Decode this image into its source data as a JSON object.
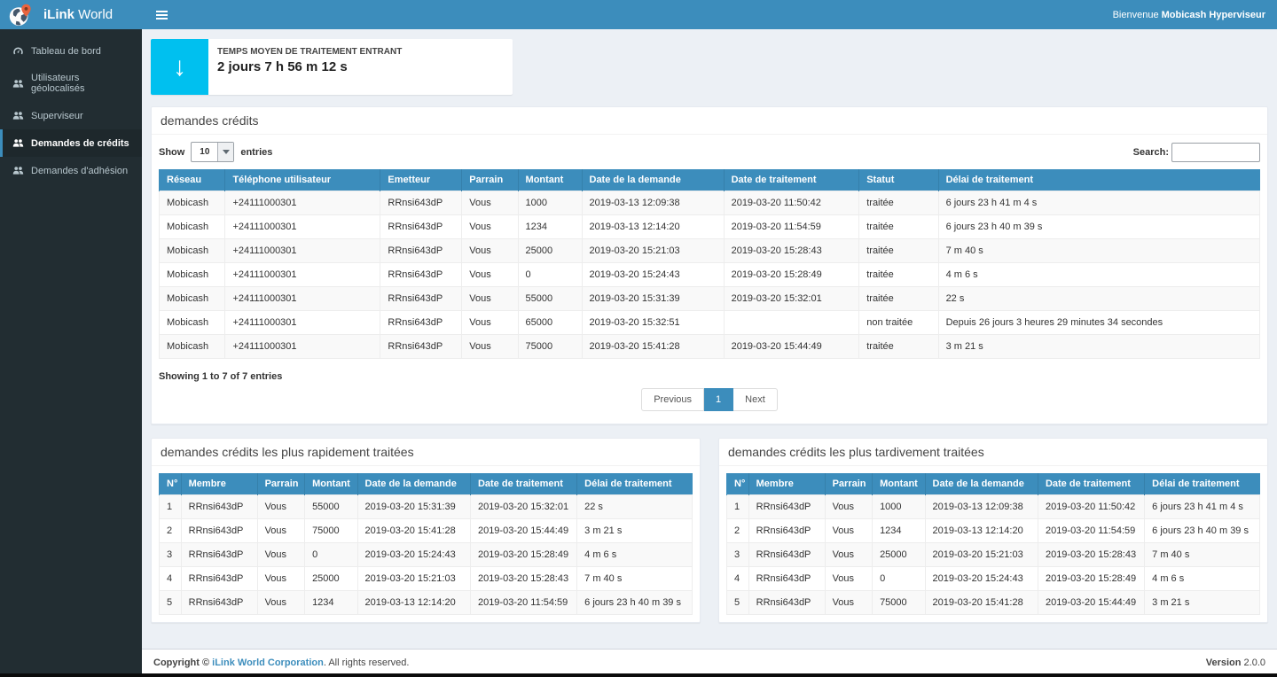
{
  "colors": {
    "accent_blue": "#3c8dbc",
    "sidebar_dark": "#222d32",
    "info_icon_aqua": "#00c0ef",
    "body_background": "#ecf0f5",
    "pin_orange": "#e8643f"
  },
  "brand": {
    "name_bold": "iLink",
    "name_regular": " World"
  },
  "navbar": {
    "welcome_prefix": "Bienvenue ",
    "welcome_user": "Mobicash Hyperviseur"
  },
  "sidebar": {
    "items": [
      {
        "label": "Tableau de bord",
        "icon": "dashboard-icon",
        "active": false
      },
      {
        "label": "Utilisateurs géolocalisés",
        "icon": "users-icon",
        "active": false
      },
      {
        "label": "Superviseur",
        "icon": "users-icon",
        "active": false
      },
      {
        "label": "Demandes de crédits",
        "icon": "users-icon",
        "active": true
      },
      {
        "label": "Demandes d'adhésion",
        "icon": "users-icon",
        "active": false
      }
    ]
  },
  "info_box": {
    "icon": "arrow-down-icon",
    "arrow_glyph": "↓",
    "label": "TEMPS MOYEN DE TRAITEMENT ENTRANT",
    "value": "2 jours 7 h 56 m 12 s"
  },
  "main_table": {
    "title": "demandes crédits",
    "show_label": "Show",
    "page_length": "10",
    "entries_label": "entries",
    "search_label": "Search:",
    "search_value": "",
    "columns": [
      "Réseau",
      "Téléphone utilisateur",
      "Emetteur",
      "Parrain",
      "Montant",
      "Date de la demande",
      "Date de traitement",
      "Statut",
      "Délai de traitement"
    ],
    "rows": [
      [
        "Mobicash",
        "+24111000301",
        "RRnsi643dP",
        "Vous",
        "1000",
        "2019-03-13 12:09:38",
        "2019-03-20 11:50:42",
        "traitée",
        "6 jours 23 h 41 m 4 s"
      ],
      [
        "Mobicash",
        "+24111000301",
        "RRnsi643dP",
        "Vous",
        "1234",
        "2019-03-13 12:14:20",
        "2019-03-20 11:54:59",
        "traitée",
        "6 jours 23 h 40 m 39 s"
      ],
      [
        "Mobicash",
        "+24111000301",
        "RRnsi643dP",
        "Vous",
        "25000",
        "2019-03-20 15:21:03",
        "2019-03-20 15:28:43",
        "traitée",
        "7 m 40 s"
      ],
      [
        "Mobicash",
        "+24111000301",
        "RRnsi643dP",
        "Vous",
        "0",
        "2019-03-20 15:24:43",
        "2019-03-20 15:28:49",
        "traitée",
        "4 m 6 s"
      ],
      [
        "Mobicash",
        "+24111000301",
        "RRnsi643dP",
        "Vous",
        "55000",
        "2019-03-20 15:31:39",
        "2019-03-20 15:32:01",
        "traitée",
        "22 s"
      ],
      [
        "Mobicash",
        "+24111000301",
        "RRnsi643dP",
        "Vous",
        "65000",
        "2019-03-20 15:32:51",
        "",
        "non traitée",
        "Depuis 26 jours 3 heures 29 minutes 34 secondes"
      ],
      [
        "Mobicash",
        "+24111000301",
        "RRnsi643dP",
        "Vous",
        "75000",
        "2019-03-20 15:41:28",
        "2019-03-20 15:44:49",
        "traitée",
        "3 m 21 s"
      ]
    ],
    "info": "Showing 1 to 7 of 7 entries",
    "pagination": {
      "previous": "Previous",
      "page": "1",
      "next": "Next"
    }
  },
  "fastest_table": {
    "title": "demandes crédits les plus rapidement traitées",
    "columns": [
      "N°",
      "Membre",
      "Parrain",
      "Montant",
      "Date de la demande",
      "Date de traitement",
      "Délai de traitement"
    ],
    "rows": [
      [
        "1",
        "RRnsi643dP",
        "Vous",
        "55000",
        "2019-03-20 15:31:39",
        "2019-03-20 15:32:01",
        "22 s"
      ],
      [
        "2",
        "RRnsi643dP",
        "Vous",
        "75000",
        "2019-03-20 15:41:28",
        "2019-03-20 15:44:49",
        "3 m 21 s"
      ],
      [
        "3",
        "RRnsi643dP",
        "Vous",
        "0",
        "2019-03-20 15:24:43",
        "2019-03-20 15:28:49",
        "4 m 6 s"
      ],
      [
        "4",
        "RRnsi643dP",
        "Vous",
        "25000",
        "2019-03-20 15:21:03",
        "2019-03-20 15:28:43",
        "7 m 40 s"
      ],
      [
        "5",
        "RRnsi643dP",
        "Vous",
        "1234",
        "2019-03-13 12:14:20",
        "2019-03-20 11:54:59",
        "6 jours 23 h 40 m 39 s"
      ]
    ]
  },
  "slowest_table": {
    "title": "demandes crédits les plus tardivement traitées",
    "columns": [
      "N°",
      "Membre",
      "Parrain",
      "Montant",
      "Date de la demande",
      "Date de traitement",
      "Délai de traitement"
    ],
    "rows": [
      [
        "1",
        "RRnsi643dP",
        "Vous",
        "1000",
        "2019-03-13 12:09:38",
        "2019-03-20 11:50:42",
        "6 jours 23 h 41 m 4 s"
      ],
      [
        "2",
        "RRnsi643dP",
        "Vous",
        "1234",
        "2019-03-13 12:14:20",
        "2019-03-20 11:54:59",
        "6 jours 23 h 40 m 39 s"
      ],
      [
        "3",
        "RRnsi643dP",
        "Vous",
        "25000",
        "2019-03-20 15:21:03",
        "2019-03-20 15:28:43",
        "7 m 40 s"
      ],
      [
        "4",
        "RRnsi643dP",
        "Vous",
        "0",
        "2019-03-20 15:24:43",
        "2019-03-20 15:28:49",
        "4 m 6 s"
      ],
      [
        "5",
        "RRnsi643dP",
        "Vous",
        "75000",
        "2019-03-20 15:41:28",
        "2019-03-20 15:44:49",
        "3 m 21 s"
      ]
    ]
  },
  "footer": {
    "copyright_bold": "Copyright © ",
    "company_link": "iLink World Corporation",
    "copyright_rest": ". All rights reserved.",
    "version_label": "Version",
    "version_value": "2.0.0"
  }
}
